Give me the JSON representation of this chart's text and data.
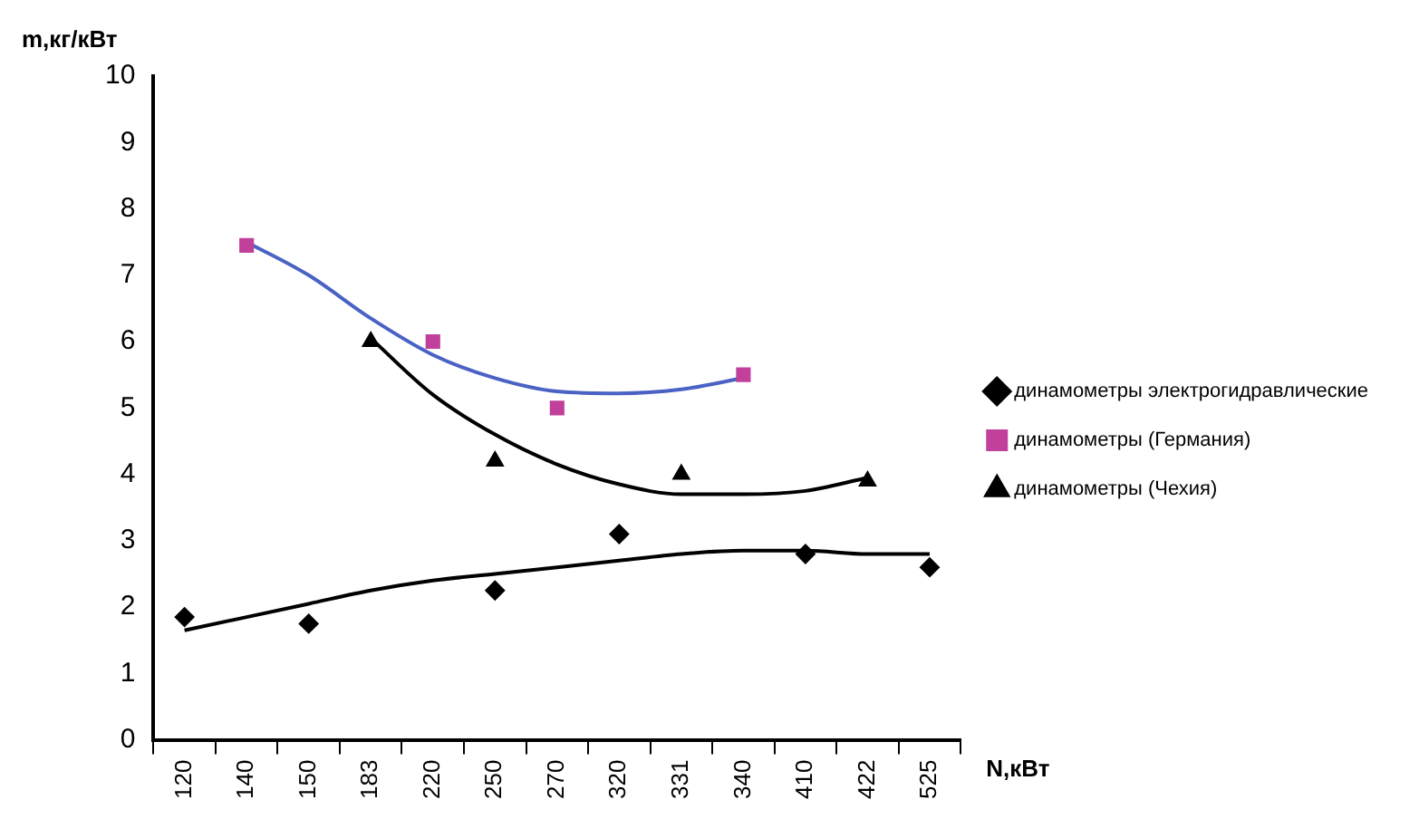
{
  "chart_data": {
    "type": "scatter",
    "xlabel": "N,кВт",
    "ylabel": "m,кг/кВт",
    "categories": [
      "120",
      "140",
      "150",
      "183",
      "220",
      "250",
      "270",
      "320",
      "331",
      "340",
      "410",
      "422",
      "525"
    ],
    "ylim": [
      0,
      10
    ],
    "yticks": [
      0,
      1,
      2,
      3,
      4,
      5,
      6,
      7,
      8,
      9,
      10
    ],
    "grid": false,
    "legend": "right",
    "series": [
      {
        "name": "динамометры электрогидравлические",
        "marker": "diamond",
        "color": "#000000",
        "values": [
          1.85,
          null,
          1.75,
          null,
          null,
          2.25,
          null,
          3.1,
          null,
          null,
          2.8,
          null,
          2.6
        ]
      },
      {
        "name": "динамометры (Германия)",
        "marker": "square",
        "color": "#c0409c",
        "values": [
          null,
          7.45,
          null,
          null,
          6.0,
          null,
          5.0,
          null,
          null,
          5.5,
          null,
          null,
          null
        ]
      },
      {
        "name": "динамометры (Чехия)",
        "marker": "triangle",
        "color": "#000000",
        "values": [
          null,
          null,
          null,
          6.0,
          null,
          4.2,
          null,
          null,
          4.0,
          null,
          null,
          3.9,
          null
        ]
      },
      {
        "type": "line",
        "marker": "none",
        "color": "#000000",
        "values": [
          1.65,
          1.85,
          2.05,
          2.25,
          2.4,
          2.5,
          2.6,
          2.7,
          2.8,
          2.85,
          2.85,
          2.8,
          2.8
        ]
      },
      {
        "type": "line",
        "marker": "none",
        "color": "#4a62c4",
        "values": [
          null,
          7.5,
          7.0,
          6.35,
          5.8,
          5.45,
          5.25,
          5.22,
          5.28,
          5.45,
          null,
          null,
          null
        ]
      },
      {
        "type": "line",
        "marker": "none",
        "color": "#000000",
        "values": [
          null,
          null,
          null,
          6.05,
          5.2,
          4.6,
          4.15,
          3.85,
          3.7,
          3.7,
          3.75,
          3.95,
          null
        ]
      }
    ]
  }
}
